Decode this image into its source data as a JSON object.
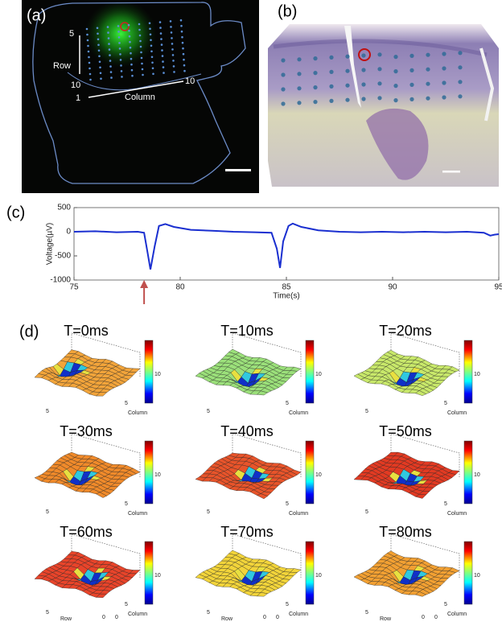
{
  "panels": {
    "a": {
      "label": "(a)",
      "row_top": "5",
      "row_label": "Row",
      "row_bottom": "10",
      "col_start": "1",
      "col_label": "Column",
      "col_end": "10"
    },
    "b": {
      "label": "(b)"
    },
    "c": {
      "label": "(c)"
    },
    "d": {
      "label": "(d)",
      "column_label": "Column",
      "row_label": "Row",
      "colorbar_tick": "10",
      "tick_5": "5",
      "tick_0": "0",
      "plots": [
        {
          "title": "T=0ms",
          "color": "#f2a43a"
        },
        {
          "title": "T=10ms",
          "color": "#9be07a"
        },
        {
          "title": "T=20ms",
          "color": "#c8e86a"
        },
        {
          "title": "T=30ms",
          "color": "#f08a2a"
        },
        {
          "title": "T=40ms",
          "color": "#e8542a"
        },
        {
          "title": "T=50ms",
          "color": "#e23a22"
        },
        {
          "title": "T=60ms",
          "color": "#e8442a"
        },
        {
          "title": "T=70ms",
          "color": "#f2d43a"
        },
        {
          "title": "T=80ms",
          "color": "#f2a032"
        }
      ]
    }
  },
  "chart_data": {
    "type": "line",
    "xlabel": "Time(s)",
    "ylabel": "Voltage(µV)",
    "x": [
      75,
      76,
      77,
      78,
      78.3,
      78.45,
      78.6,
      78.8,
      79,
      79.3,
      79.7,
      80.5,
      81.5,
      82.5,
      83.5,
      84.3,
      84.55,
      84.7,
      84.85,
      85.1,
      85.3,
      85.7,
      86.5,
      87.5,
      88.5,
      89.5,
      90.5,
      91.5,
      92.5,
      93.5,
      94.3,
      94.6,
      94.8,
      95
    ],
    "values": [
      0,
      10,
      -10,
      0,
      -20,
      -400,
      -780,
      -300,
      120,
      160,
      100,
      40,
      20,
      0,
      -10,
      -20,
      -350,
      -750,
      -200,
      120,
      170,
      100,
      30,
      0,
      -10,
      0,
      -10,
      0,
      -10,
      0,
      -20,
      -80,
      -60,
      -50
    ],
    "color": "#1a2fd0",
    "xlim": [
      75,
      95
    ],
    "ylim": [
      -1000,
      500
    ],
    "xticks": [
      75,
      80,
      85,
      90,
      95
    ],
    "yticks": [
      -1000,
      -500,
      0,
      500
    ],
    "arrow": {
      "x": 78.3,
      "color": "#c0504d"
    }
  }
}
